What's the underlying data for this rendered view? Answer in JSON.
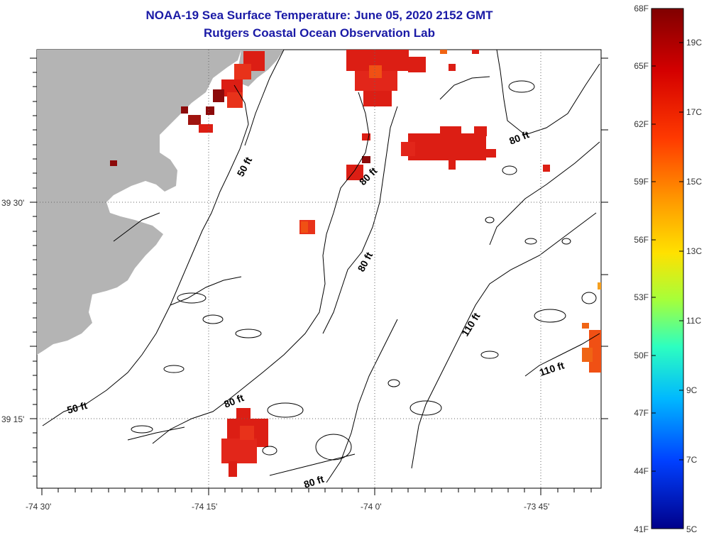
{
  "title": "NOAA-19 Sea Surface Temperature:  June 05, 2020 2152 GMT",
  "subtitle": "Rutgers Coastal Ocean Observation Lab",
  "axes": {
    "lon_labels": [
      "-74 30'",
      "-74 15'",
      "-74 0'",
      "-73 45'"
    ],
    "lat_labels": [
      "39 30'",
      "39 15'"
    ]
  },
  "contour_labels": {
    "c1": "50 ft",
    "c2": "50 ft",
    "c3": "80 ft",
    "c4": "80 ft",
    "c5": "80 ft",
    "c6": "80 ft",
    "c7": "80 ft",
    "c8": "110 ft",
    "c9": "110 ft"
  },
  "colorbar": {
    "fahrenheit": [
      "68F",
      "65F",
      "62F",
      "59F",
      "56F",
      "53F",
      "50F",
      "47F",
      "44F",
      "41F"
    ],
    "celsius": [
      "19C",
      "17C",
      "15C",
      "13C",
      "11C",
      "9C",
      "7C",
      "5C"
    ]
  },
  "colors": {
    "land": "#b4b4b4",
    "title": "#1a1aa6",
    "sst_warm": "#dc1e14",
    "sst_hot": "#8c0a0a",
    "sst_orange": "#f06414"
  }
}
